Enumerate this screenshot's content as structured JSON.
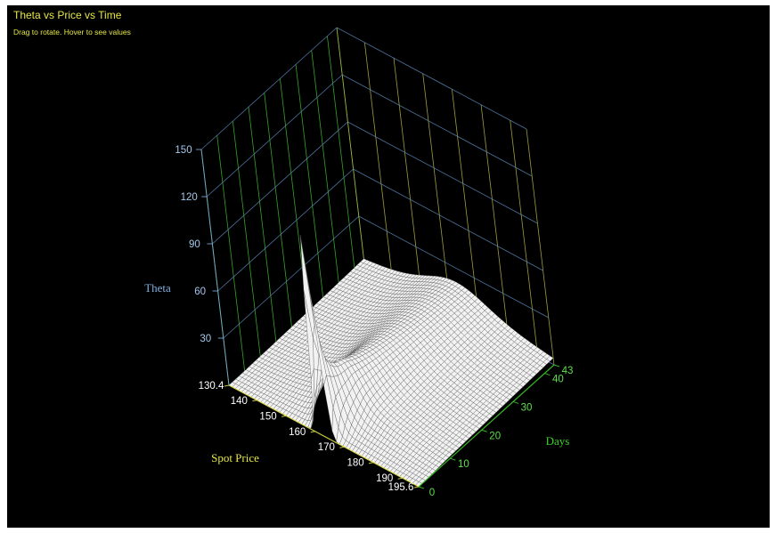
{
  "header": {
    "title": "Theta vs Price vs Time",
    "subtitle": "Drag to rotate. Hover to see values"
  },
  "colors": {
    "background": "#000000",
    "title": "#e6e645",
    "price_axis": "#e6e645",
    "days_axis": "#3fd12b",
    "theta_axis": "#7fb0e0",
    "surface_fill": "#f2f2f2",
    "surface_mesh": "#555555"
  },
  "chart_data": {
    "type": "surface",
    "title": "Theta vs Price vs Time",
    "subtitle": "Drag to rotate. Hover to see values",
    "x_axis": {
      "label": "Spot Price",
      "range": [
        130.4,
        195.6
      ],
      "ticks": [
        "130.4",
        "140",
        "150",
        "160",
        "170",
        "180",
        "190",
        "195.6"
      ]
    },
    "y_axis": {
      "label": "Days",
      "range": [
        0,
        43
      ],
      "ticks": [
        "0",
        "10",
        "20",
        "30",
        "40",
        "43"
      ]
    },
    "z_axis": {
      "label": "Theta",
      "range": [
        0,
        150
      ],
      "ticks": [
        "30",
        "60",
        "90",
        "120",
        "150"
      ]
    },
    "surface_model": {
      "strike": 163,
      "peak_theta": 135,
      "description_values": [
        {
          "price": 163,
          "days": 0.5,
          "theta": 135
        },
        {
          "price": 163,
          "days": 5,
          "theta": 42
        },
        {
          "price": 163,
          "days": 20,
          "theta": 21
        },
        {
          "price": 163,
          "days": 43,
          "theta": 14
        },
        {
          "price": 130.4,
          "days": 43,
          "theta": 3
        },
        {
          "price": 195.6,
          "days": 43,
          "theta": 5
        }
      ]
    },
    "grid": true
  }
}
